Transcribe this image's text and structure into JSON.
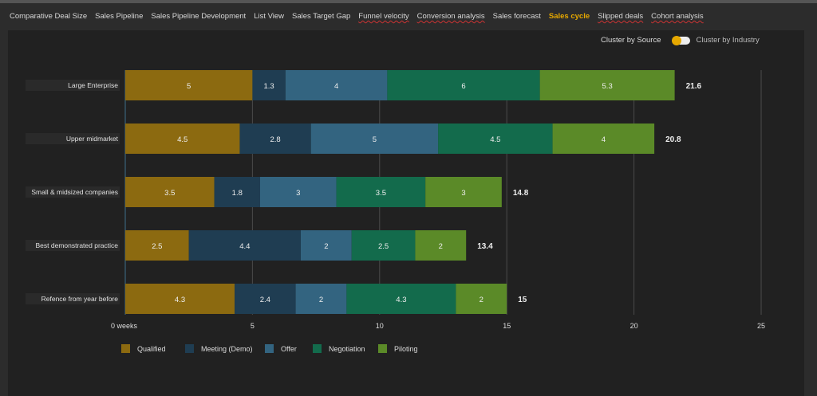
{
  "tabs": [
    {
      "label": "Comparative Deal Size",
      "spell": false
    },
    {
      "label": "Sales Pipeline",
      "spell": false
    },
    {
      "label": "Sales Pipeline Development",
      "spell": false
    },
    {
      "label": "List View",
      "spell": false
    },
    {
      "label": "Sales Target Gap",
      "spell": false
    },
    {
      "label": "Funnel velocity",
      "spell": true
    },
    {
      "label": "Conversion analysis",
      "spell": true
    },
    {
      "label": "Sales forecast",
      "spell": false
    },
    {
      "label": "Sales cycle",
      "spell": false,
      "active": true
    },
    {
      "label": "Slipped deals",
      "spell": true
    },
    {
      "label": "Cohort analysis",
      "spell": true
    }
  ],
  "toggle": {
    "left_label": "Cluster by Source",
    "right_label": "Cluster by Industry",
    "state": "source"
  },
  "chart_data": {
    "type": "bar",
    "orientation": "horizontal",
    "stacked": true,
    "categories": [
      "Large Enterprise",
      "Upper midmarket",
      "Small & midsized companies",
      "Best demonstrated practice",
      "Refence from year before"
    ],
    "series": [
      {
        "name": "Qualified",
        "color": "#8c6a10",
        "values": [
          5,
          4.5,
          3.5,
          2.5,
          4.3
        ]
      },
      {
        "name": "Meeting (Demo)",
        "color": "#1f3d52",
        "values": [
          1.3,
          2.8,
          1.8,
          4.4,
          2.4
        ]
      },
      {
        "name": "Offer",
        "color": "#336480",
        "values": [
          4,
          5,
          3,
          2,
          2
        ]
      },
      {
        "name": "Negotiation",
        "color": "#136b4c",
        "values": [
          6,
          4.5,
          3.5,
          2.5,
          4.3
        ]
      },
      {
        "name": "Piloting",
        "color": "#5b8a28",
        "values": [
          5.3,
          4,
          3,
          2,
          2
        ]
      }
    ],
    "totals": [
      "21.6",
      "20.8",
      "14.8",
      "13.4",
      "15"
    ],
    "xticks": [
      "0  weeks",
      "5",
      "10",
      "15",
      "20",
      "25"
    ],
    "xlim": [
      0,
      25
    ],
    "grid": true,
    "legend": "bottom"
  }
}
